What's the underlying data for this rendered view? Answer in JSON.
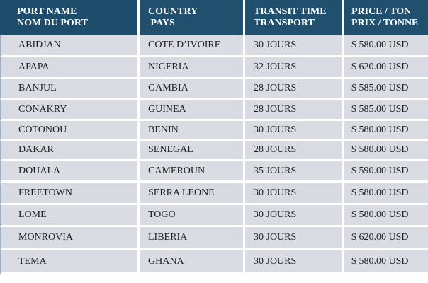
{
  "headers": [
    {
      "en": "PORT NAME",
      "fr": "NOM DU PORT"
    },
    {
      "en": "COUNTRY",
      "fr": " PAYS"
    },
    {
      "en": "TRANSIT TIME",
      "fr": "TRANSPORT"
    },
    {
      "en": "PRICE / TON",
      "fr": "PRIX / TONNE"
    }
  ],
  "rows": [
    {
      "port": "ABIDJAN",
      "country": "COTE D’IVOIRE",
      "transit": "30 JOURS",
      "price": "$ 580.00 USD"
    },
    {
      "port": "APAPA",
      "country": "NIGERIA",
      "transit": "32 JOURS",
      "price": "$ 620.00 USD"
    },
    {
      "port": "BANJUL",
      "country": "GAMBIA",
      "transit": "28 JOURS",
      "price": "$ 585.00 USD"
    },
    {
      "port": "CONAKRY",
      "country": "GUINEA",
      "transit": "28 JOURS",
      "price": "$ 585.00 USD"
    },
    {
      "port": "COTONOU",
      "country": "BENIN",
      "transit": "30 JOURS",
      "price": "$ 580.00 USD"
    },
    {
      "port": "DAKAR",
      "country": "SENEGAL",
      "transit": "28 JOURS",
      "price": "$ 580.00 USD"
    },
    {
      "port": "DOUALA",
      "country": "CAMEROUN",
      "transit": "35 JOURS",
      "price": "$ 590.00 USD"
    },
    {
      "port": "FREETOWN",
      "country": "SERRA LEONE",
      "transit": "30 JOURS",
      "price": "$ 580.00 USD"
    },
    {
      "port": "LOME",
      "country": "TOGO",
      "transit": "30 JOURS",
      "price": "$ 580.00 USD"
    },
    {
      "port": "MONROVIA",
      "country": "LIBERIA",
      "transit": "30 JOURS",
      "price": "$ 620.00 USD"
    },
    {
      "port": "TEMA",
      "country": "GHANA",
      "transit": "30 JOURS",
      "price": "$ 580.00 USD"
    }
  ],
  "colors": {
    "header_bg": "#21506f",
    "row_bg": "#d9dbe3"
  }
}
